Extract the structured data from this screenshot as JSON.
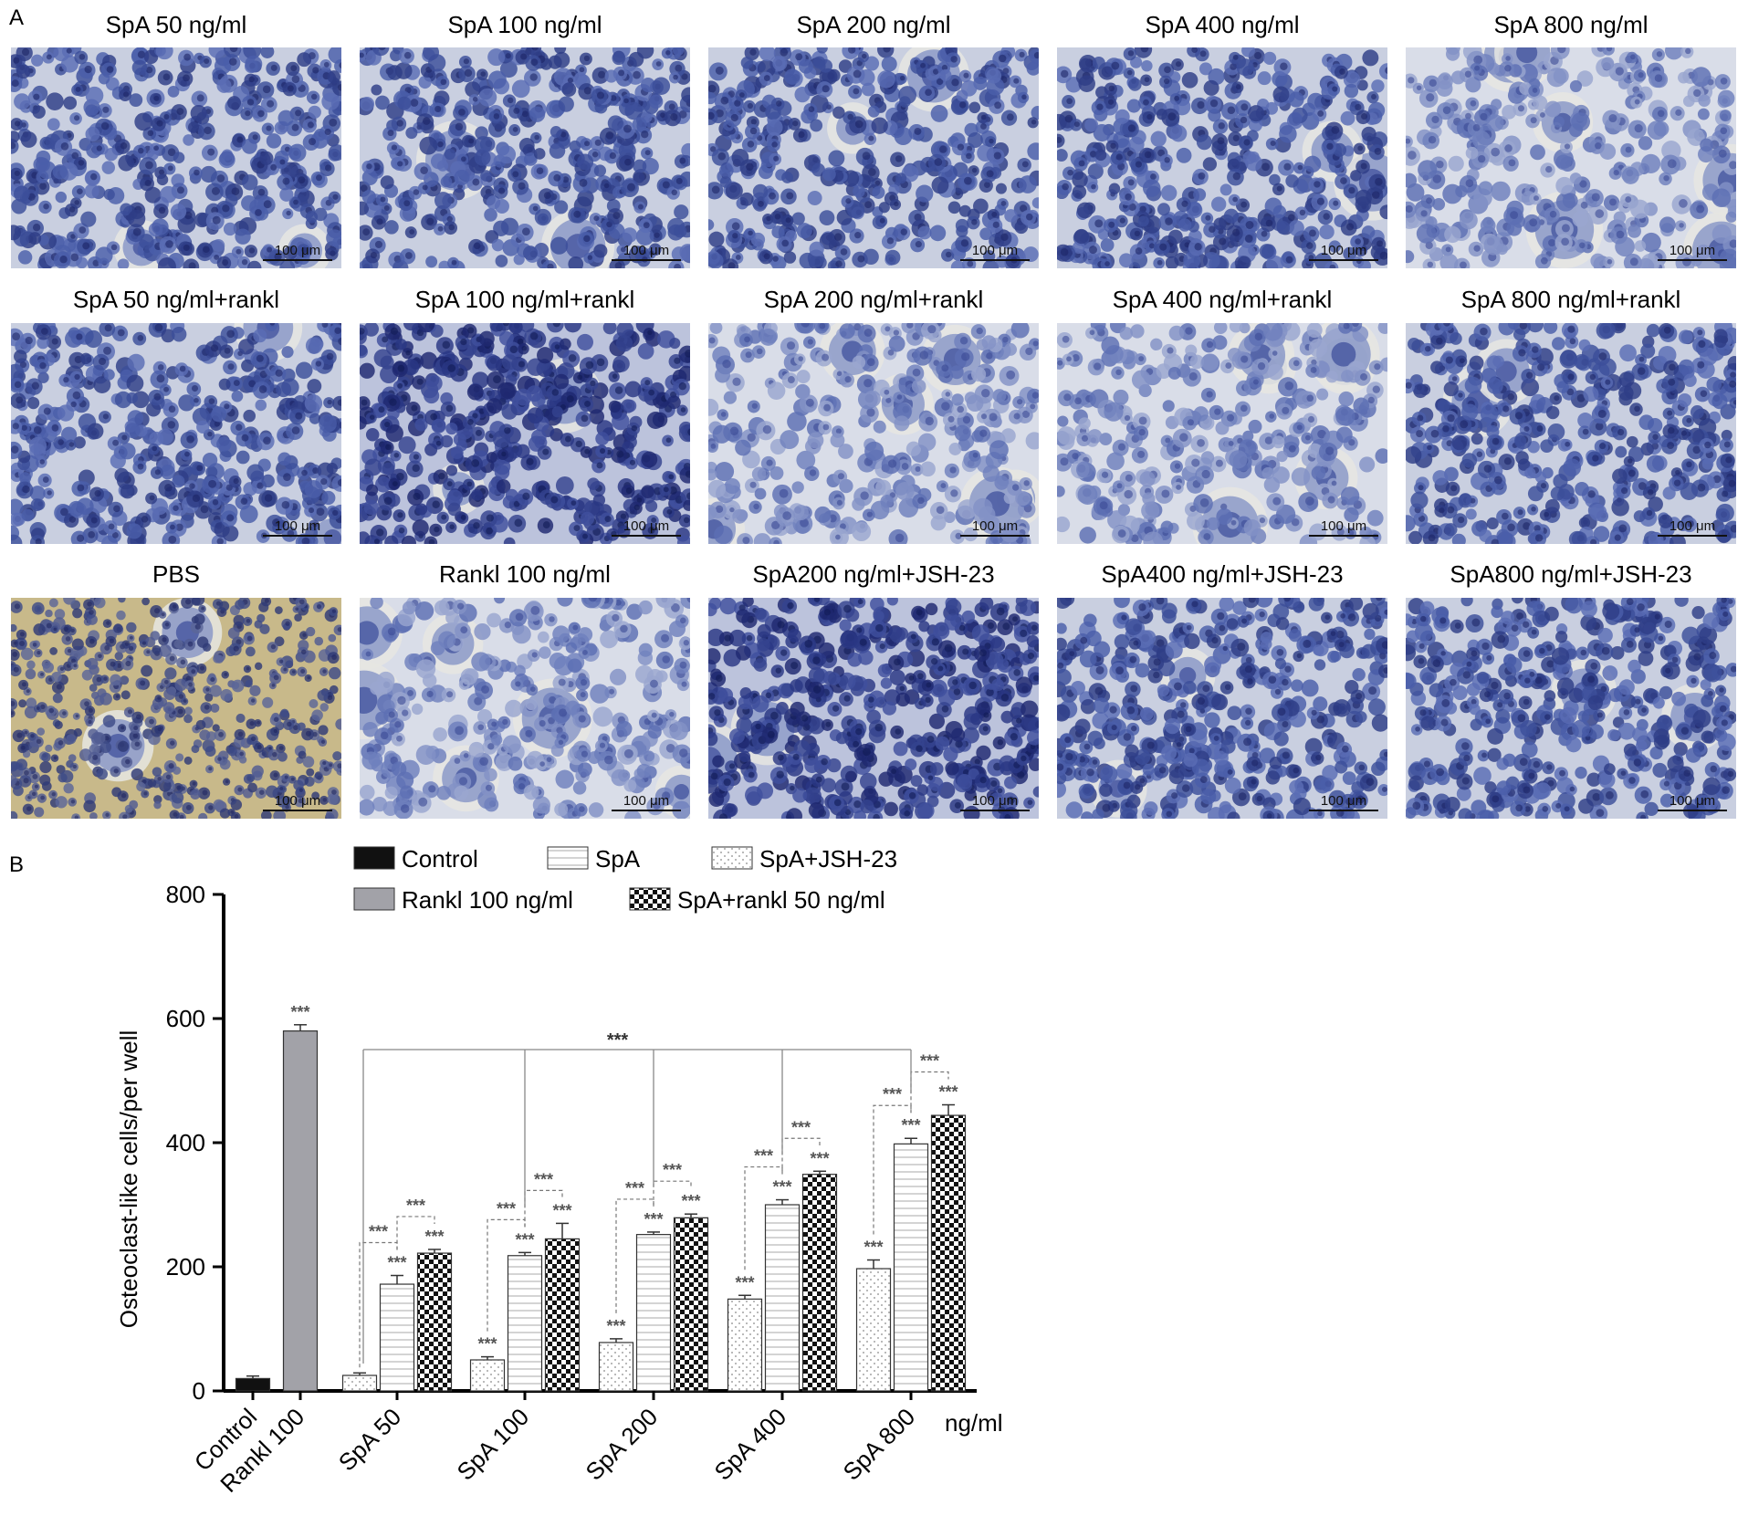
{
  "panel_a_label": "A",
  "panel_b_label": "B",
  "scale_bar_label": "100 μm",
  "micrographs": [
    {
      "title": "SpA 50 ng/ml",
      "stain": "dense-blue"
    },
    {
      "title": "SpA 100 ng/ml",
      "stain": "dense-blue"
    },
    {
      "title": "SpA 200 ng/ml",
      "stain": "dense-blue"
    },
    {
      "title": "SpA 400 ng/ml",
      "stain": "dense-blue"
    },
    {
      "title": "SpA 800 ng/ml",
      "stain": "light-blue"
    },
    {
      "title": "SpA 50 ng/ml+rankl",
      "stain": "dense-blue"
    },
    {
      "title": "SpA 100 ng/ml+rankl",
      "stain": "dark-blue"
    },
    {
      "title": "SpA 200 ng/ml+rankl",
      "stain": "light-blue"
    },
    {
      "title": "SpA 400 ng/ml+rankl",
      "stain": "light-blue"
    },
    {
      "title": "SpA 800 ng/ml+rankl",
      "stain": "dense-blue"
    },
    {
      "title": "PBS",
      "stain": "yellow-background"
    },
    {
      "title": "Rankl 100 ng/ml",
      "stain": "light-blue"
    },
    {
      "title": "SpA200 ng/ml+JSH-23",
      "stain": "dark-blue"
    },
    {
      "title": "SpA400 ng/ml+JSH-23",
      "stain": "dense-blue"
    },
    {
      "title": "SpA800 ng/ml+JSH-23",
      "stain": "dense-blue"
    }
  ],
  "chart_data": {
    "type": "bar",
    "ylabel": "Osteoclast-like cells/per well",
    "x_unit_label": "ng/ml",
    "ylim": [
      0,
      800
    ],
    "yticks": [
      0,
      200,
      400,
      600,
      800
    ],
    "legend": [
      {
        "name": "Control",
        "pattern": "solid-black"
      },
      {
        "name": "SpA",
        "pattern": "horizontal-lines"
      },
      {
        "name": "SpA+JSH-23",
        "pattern": "dots"
      },
      {
        "name": "Rankl 100 ng/ml",
        "pattern": "solid-gray"
      },
      {
        "name": "SpA+rankl 50 ng/ml",
        "pattern": "checker"
      }
    ],
    "categories": [
      "Control",
      "Rankl 100",
      "SpA 50",
      "SpA 100",
      "SpA 200",
      "SpA 400",
      "SpA 800"
    ],
    "single_bars": [
      {
        "category": "Control",
        "series": "Control",
        "value": 20,
        "error": 4,
        "sig": ""
      },
      {
        "category": "Rankl 100",
        "series": "Rankl 100 ng/ml",
        "value": 580,
        "error": 10,
        "sig": "***"
      }
    ],
    "grouped": {
      "categories": [
        "SpA 50",
        "SpA 100",
        "SpA 200",
        "SpA 400",
        "SpA 800"
      ],
      "series": [
        {
          "name": "SpA+JSH-23",
          "values": [
            25,
            50,
            78,
            148,
            197
          ],
          "errors": [
            4,
            5,
            6,
            6,
            14
          ],
          "sig": [
            "",
            "***",
            "***",
            "***",
            "***"
          ]
        },
        {
          "name": "SpA",
          "values": [
            172,
            218,
            252,
            300,
            398
          ],
          "errors": [
            14,
            5,
            4,
            8,
            9
          ],
          "sig": [
            "***",
            "***",
            "***",
            "***",
            "***"
          ]
        },
        {
          "name": "SpA+rankl 50 ng/ml",
          "values": [
            222,
            245,
            279,
            349,
            444
          ],
          "errors": [
            6,
            25,
            6,
            5,
            17
          ],
          "sig": [
            "***",
            "***",
            "***",
            "***",
            "***"
          ]
        }
      ],
      "pair_sig": "***"
    },
    "overall_sig": "***"
  }
}
